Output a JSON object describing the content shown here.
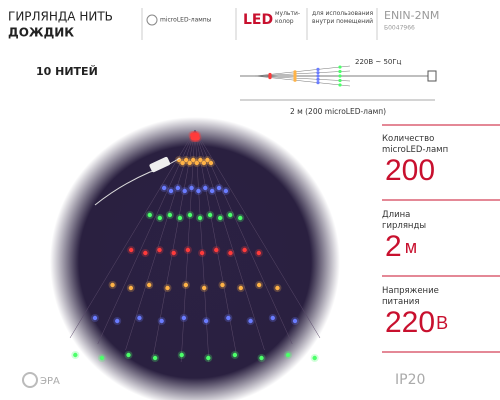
{
  "header": {
    "title_line1": "ГИРЛЯНДА НИТЬ",
    "title_line2": "ДОЖДИК",
    "lamp_type": "microLED-лампы",
    "led_label": "LED",
    "led_color": "мульти-колор",
    "usage": "для использования внутри помещений",
    "model": "ENIN-2NM",
    "article": "Б0047966"
  },
  "strands_label": "10 НИТЕЙ",
  "scheme": {
    "power": "220В ~ 50Гц",
    "length": "2 м (200 microLED-ламп)"
  },
  "specs": [
    {
      "label": "Количество microLED-ламп",
      "value": "200",
      "unit": ""
    },
    {
      "label": "Длина гирлянды",
      "value": "2",
      "unit": "м"
    },
    {
      "label": "Напряжение питания",
      "value": "220",
      "unit": "В"
    }
  ],
  "brand": "ЭРА",
  "protection": "IP20"
}
